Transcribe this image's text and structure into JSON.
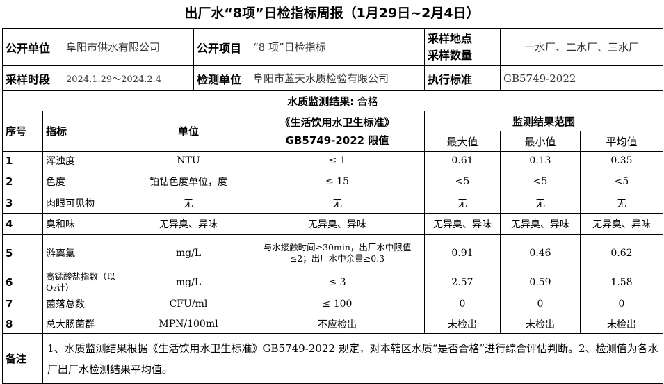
{
  "title": "出厂水“8项”日检指标周报（1月29日~2月4日）",
  "info": {
    "publisher_label": "公开单位",
    "publisher": "阜阳市供水有限公司",
    "project_label": "公开项目",
    "project": "“8 项”日检指标",
    "site_label_1": "采样地点",
    "site_label_2": "采样数量",
    "sites": "一水厂、二水厂、三水厂",
    "period_label": "采样时段",
    "period": "2024.1.29～2024.2.4",
    "lab_label": "检测单位",
    "lab": "阜阳市蓝天水质检验有限公司",
    "standard_label": "执行标准",
    "standard": "GB5749-2022"
  },
  "result": {
    "label": "水质监测结果:",
    "value": "合格"
  },
  "header": {
    "no": "序号",
    "indicator": "指标",
    "unit": "单位",
    "limit_1": "《生活饮用水卫生标准》",
    "limit_2": "GB5749-2022 限值",
    "range": "监测结果范围",
    "max": "最大值",
    "min": "最小值",
    "avg": "平均值"
  },
  "rows": [
    {
      "no": "1",
      "indicator": "浑浊度",
      "unit": "NTU",
      "limit": "≤ 1",
      "max": "0.61",
      "min": "0.13",
      "avg": "0.35"
    },
    {
      "no": "2",
      "indicator": "色度",
      "unit": "铂钴色度单位，度",
      "limit": "≤ 15",
      "max": "<5",
      "min": "<5",
      "avg": "<5"
    },
    {
      "no": "3",
      "indicator": "肉眼可见物",
      "unit": "无",
      "limit": "无",
      "max": "无",
      "min": "无",
      "avg": "无"
    },
    {
      "no": "4",
      "indicator": "臭和味",
      "unit": "无异臭、异味",
      "limit": "无异臭、异味",
      "max": "无异臭、异味",
      "min": "无异臭、异味",
      "avg": "无异臭、异味"
    },
    {
      "no": "5",
      "indicator": "游离氯",
      "unit": "mg/L",
      "limit": "与水接触时间≥30min，出厂水中限值≤2；出厂水中余量≥0.3",
      "max": "0.91",
      "min": "0.46",
      "avg": "0.62"
    },
    {
      "no": "6",
      "indicator": "高锰酸盐指数（以O₂计）",
      "unit": "mg/L",
      "limit": "≤ 3",
      "max": "2.57",
      "min": "0.59",
      "avg": "1.58"
    },
    {
      "no": "7",
      "indicator": "菌落总数",
      "unit": "CFU/ml",
      "limit": "≤ 100",
      "max": "0",
      "min": "0",
      "avg": "0"
    },
    {
      "no": "8",
      "indicator": "总大肠菌群",
      "unit": "MPN/100ml",
      "limit": "不应检出",
      "max": "未检出",
      "min": "未检出",
      "avg": "未检出"
    }
  ],
  "remarks": {
    "label": "备注",
    "text": "1、水质监测结果根据《生活饮用水卫生标准》GB5749-2022 规定，对本辖区水质“是否合格”进行综合评估判断。2、检测值为各水厂出厂水检测结果平均值。"
  }
}
